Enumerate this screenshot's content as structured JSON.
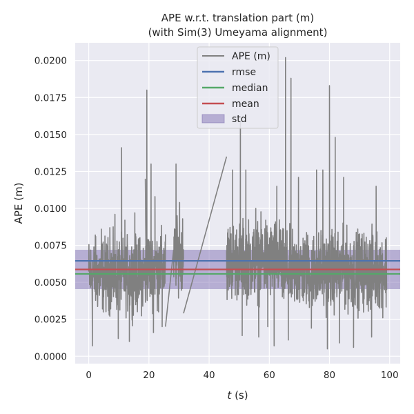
{
  "chart_data": {
    "type": "line",
    "title_line1": "APE w.r.t. translation part (m)",
    "title_line2": "(with Sim(3) Umeyama alignment)",
    "xlabel": "t (s)",
    "xlabel_italic": "t",
    "xlabel_unit": " (s)",
    "ylabel": "APE (m)",
    "xlim": [
      -4.5,
      103.5
    ],
    "ylim": [
      -0.0005,
      0.0212
    ],
    "x_ticks": [
      0,
      20,
      40,
      60,
      80,
      100
    ],
    "x_tick_labels": [
      "0",
      "20",
      "40",
      "60",
      "80",
      "100"
    ],
    "y_ticks": [
      0.0,
      0.0025,
      0.005,
      0.0075,
      0.01,
      0.0125,
      0.015,
      0.0175,
      0.02
    ],
    "y_tick_labels": [
      "0.0000",
      "0.0025",
      "0.0050",
      "0.0075",
      "0.0100",
      "0.0125",
      "0.0150",
      "0.0175",
      "0.0200"
    ],
    "grid": true,
    "legend_position": "top-center",
    "stats": {
      "rmse": 0.00645,
      "median": 0.00557,
      "mean": 0.00587,
      "std": 0.00133
    },
    "series": [
      {
        "name": "APE (m)",
        "color": "#808080",
        "kind": "line",
        "segments": [
          {
            "t_start": 0.0,
            "t_end": 19.0,
            "mean": 0.0055,
            "spread": 0.0022,
            "peaks": [
              [
                10.9,
                0.0141
              ],
              [
                4.2,
                0.0086
              ],
              [
                8.7,
                0.0096
              ],
              [
                12.0,
                0.0092
              ],
              [
                15.3,
                0.0097
              ],
              [
                2.3,
                0.0081
              ],
              [
                7.0,
                0.0087
              ],
              [
                16.5,
                0.0079
              ],
              [
                9.8,
                0.0012
              ],
              [
                1.2,
                0.0007
              ],
              [
                13.5,
                0.001
              ]
            ]
          },
          {
            "t_start": 19.0,
            "t_end": 25.5,
            "mean": 0.006,
            "spread": 0.0022,
            "peaks": [
              [
                19.3,
                0.018
              ],
              [
                18.8,
                0.012
              ],
              [
                20.7,
                0.013
              ],
              [
                22.0,
                0.0108
              ],
              [
                21.5,
                0.0016
              ],
              [
                23.2,
                0.003
              ],
              [
                24.4,
                0.002
              ]
            ]
          },
          {
            "t_start": 28.2,
            "t_end": 31.5,
            "mean": 0.0068,
            "spread": 0.002,
            "peaks": [
              [
                29.0,
                0.013
              ],
              [
                30.2,
                0.0104
              ],
              [
                31.2,
                0.0093
              ]
            ]
          },
          {
            "t_start": 45.8,
            "t_end": 64.0,
            "mean": 0.0065,
            "spread": 0.0023,
            "peaks": [
              [
                50.4,
                0.0158
              ],
              [
                47.8,
                0.0126
              ],
              [
                52.2,
                0.0126
              ],
              [
                55.5,
                0.01
              ],
              [
                58.8,
                0.0092
              ],
              [
                62.5,
                0.0115
              ],
              [
                51.0,
                0.0014
              ],
              [
                56.5,
                0.0013
              ],
              [
                61.6,
                0.0007
              ],
              [
                59.5,
                0.002
              ]
            ]
          },
          {
            "t_start": 64.0,
            "t_end": 99.0,
            "mean": 0.0058,
            "spread": 0.0023,
            "peaks": [
              [
                65.4,
                0.0202
              ],
              [
                67.2,
                0.0188
              ],
              [
                69.7,
                0.0121
              ],
              [
                75.7,
                0.0126
              ],
              [
                77.8,
                0.0126
              ],
              [
                80.0,
                0.0183
              ],
              [
                81.9,
                0.0148
              ],
              [
                84.7,
                0.0121
              ],
              [
                95.5,
                0.0115
              ],
              [
                90.3,
                0.0074
              ],
              [
                66.3,
                0.0011
              ],
              [
                74.0,
                0.0019
              ],
              [
                79.3,
                0.0005
              ],
              [
                83.3,
                0.0009
              ],
              [
                88.0,
                0.0006
              ],
              [
                94.0,
                0.0013
              ]
            ]
          }
        ],
        "connectors": [
          [
            [
              25.5,
              0.002
            ],
            [
              28.2,
              0.0072
            ]
          ],
          [
            [
              31.5,
              0.0029
            ],
            [
              45.8,
              0.0135
            ]
          ]
        ]
      },
      {
        "name": "rmse",
        "color": "#4c72b0",
        "kind": "hline"
      },
      {
        "name": "median",
        "color": "#55a868",
        "kind": "hline"
      },
      {
        "name": "mean",
        "color": "#c44e52",
        "kind": "hline"
      },
      {
        "name": "std",
        "color": "#8172b3",
        "kind": "band"
      }
    ]
  }
}
